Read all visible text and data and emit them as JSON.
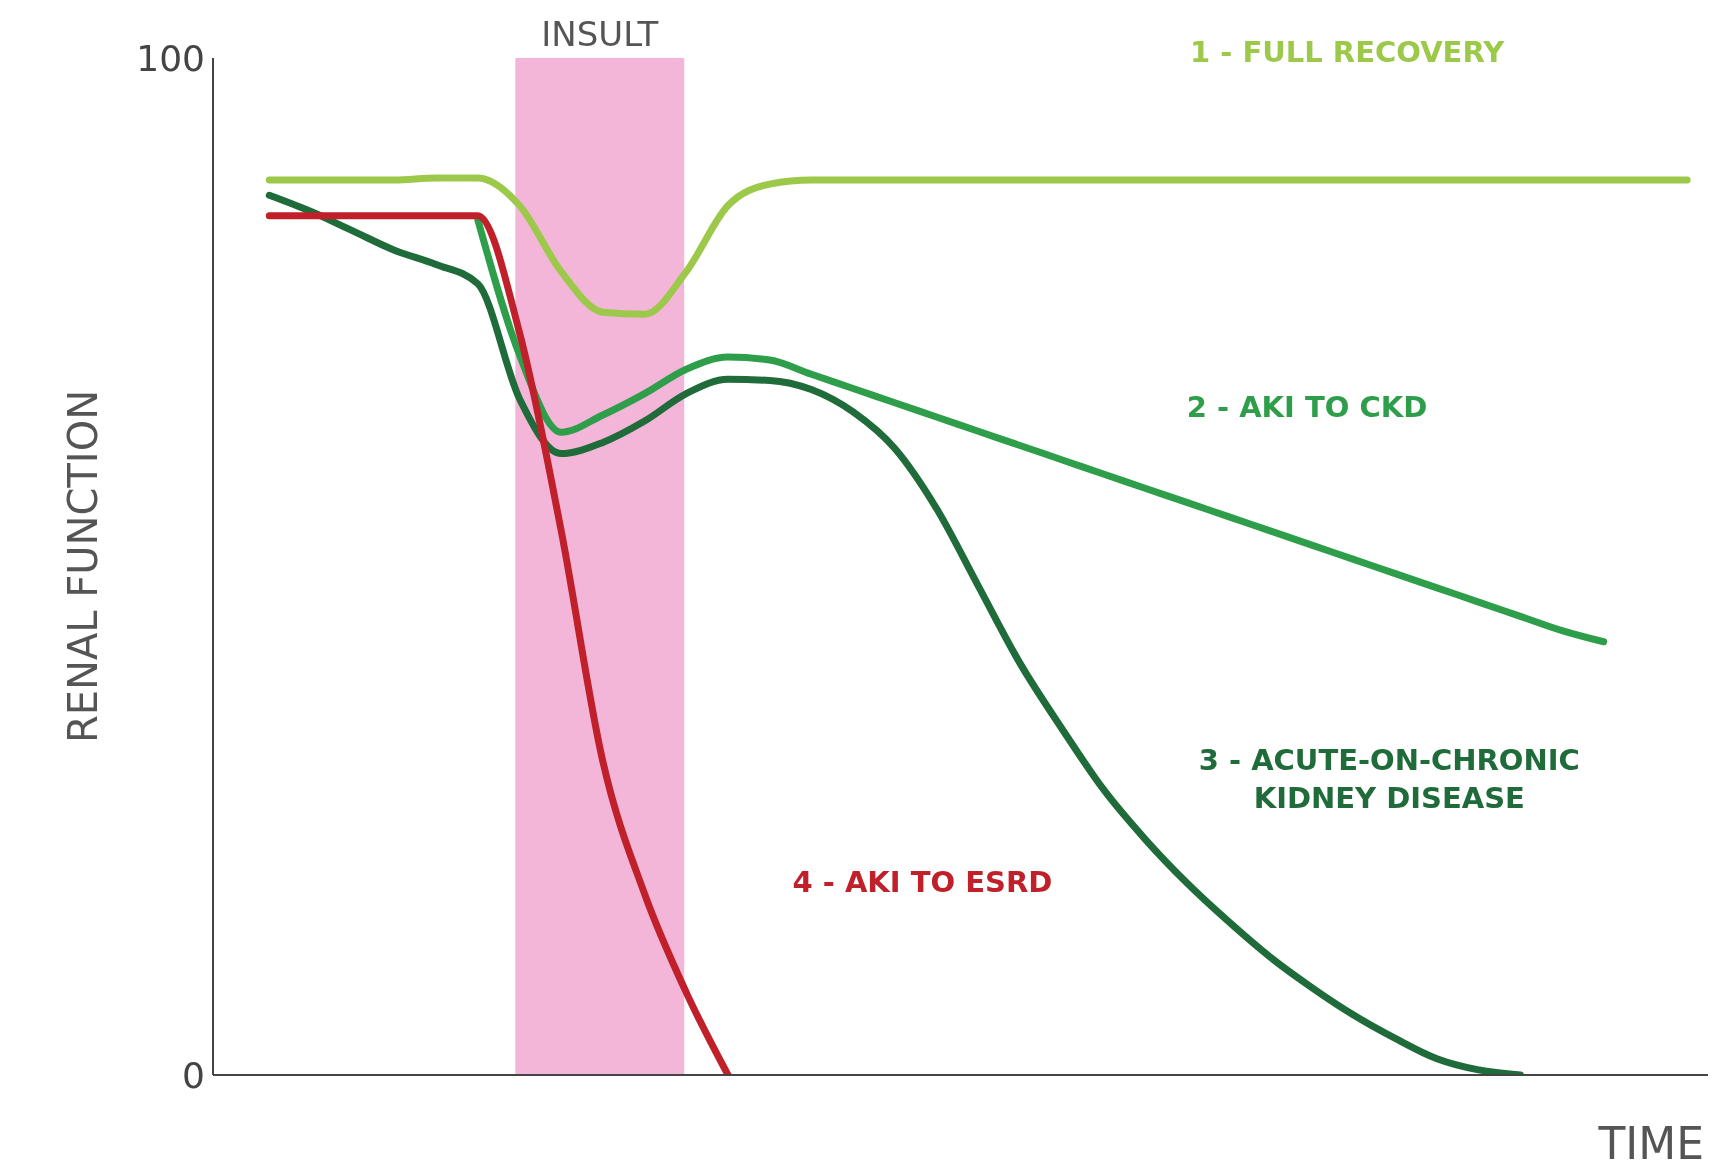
{
  "chart_data": {
    "type": "line",
    "xlabel": "TIME",
    "ylabel": "RENAL FUNCTION",
    "categories": [
      null,
      null,
      null,
      null,
      null,
      null,
      null,
      null,
      null,
      null,
      null,
      null,
      null,
      null,
      null,
      null,
      null,
      null,
      null,
      null,
      null,
      null,
      null,
      null,
      null,
      null,
      null,
      null,
      null,
      null,
      null,
      null,
      null,
      null,
      null
    ],
    "ylim": [
      0,
      100
    ],
    "yticks": [
      0,
      100
    ],
    "grid": false,
    "legend": false,
    "marker": "none",
    "line_style": "solid",
    "annotations": [
      "INSULT"
    ],
    "series": [
      {
        "name": "1 - FULL RECOVERY",
        "color": "#9dc94a",
        "values": [
          88,
          88,
          88,
          88,
          88.2,
          88.2,
          85.5,
          79,
          75,
          74.8,
          79,
          85.5,
          87.6,
          88,
          88,
          88,
          88,
          88,
          88,
          88,
          88,
          88,
          88,
          88,
          88,
          88,
          88,
          88,
          88,
          88,
          88,
          88,
          88,
          88,
          88
        ]
      },
      {
        "name": "2 - AKI TO CKD",
        "color": "#2e9e4a",
        "values": [
          null,
          null,
          null,
          null,
          null,
          84.1,
          70.8,
          63.2,
          64.9,
          67,
          69.4,
          70.6,
          70.3,
          68.9,
          67.5,
          66.1,
          64.7,
          63.3,
          61.9,
          60.5,
          59.1,
          57.7,
          56.3,
          54.9,
          53.5,
          52.1,
          50.7,
          49.3,
          47.9,
          46.5,
          45.1,
          43.7,
          42.6,
          null,
          null
        ]
      },
      {
        "name": "3 - ACUTE-ON-CHRONIC KIDNEY DISEASE",
        "color": "#1f6b3a",
        "values": [
          86.5,
          84.9,
          83,
          81.1,
          79.7,
          77.8,
          66.5,
          61.1,
          62.2,
          64.3,
          67,
          68.4,
          68.3,
          67.4,
          65.2,
          61.6,
          55.7,
          48.1,
          40.5,
          34.1,
          28.1,
          23.2,
          18.9,
          15.1,
          11.6,
          8.6,
          5.9,
          3.6,
          1.6,
          0.5,
          0,
          null,
          null,
          null,
          null
        ]
      },
      {
        "name": "4 - AKI TO ESRD",
        "color": "#c0202a",
        "values": [
          84.5,
          84.5,
          84.5,
          84.5,
          84.5,
          84.5,
          73,
          53.5,
          30.8,
          17.8,
          8.1,
          0,
          null,
          null,
          null,
          null,
          null,
          null,
          null,
          null,
          null,
          null,
          null,
          null,
          null,
          null,
          null,
          null,
          null,
          null,
          null,
          null,
          null,
          null,
          null
        ]
      }
    ]
  }
}
